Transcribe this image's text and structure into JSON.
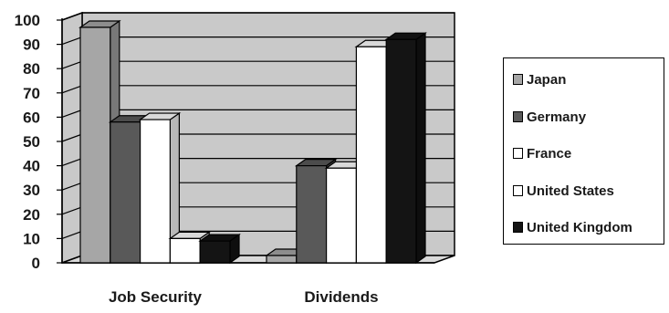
{
  "chart_data": {
    "type": "bar",
    "categories": [
      "Job Security",
      "Dividends"
    ],
    "series": [
      {
        "name": "Japan",
        "values": [
          97,
          3
        ],
        "color": "#a6a6a6"
      },
      {
        "name": "Germany",
        "values": [
          58,
          40
        ],
        "color": "#595959"
      },
      {
        "name": "France",
        "values": [
          59,
          39
        ],
        "color": "#ffffff"
      },
      {
        "name": "United States",
        "values": [
          10,
          89
        ],
        "color": "#ffffff"
      },
      {
        "name": "United Kingdom",
        "values": [
          9,
          92
        ],
        "color": "#141414"
      }
    ],
    "y_ticks": [
      "0",
      "10",
      "20",
      "30",
      "40",
      "50",
      "60",
      "70",
      "80",
      "90",
      "100"
    ],
    "ylim": [
      0,
      100
    ],
    "grid": true,
    "three_d": true,
    "legend_position": "right"
  }
}
